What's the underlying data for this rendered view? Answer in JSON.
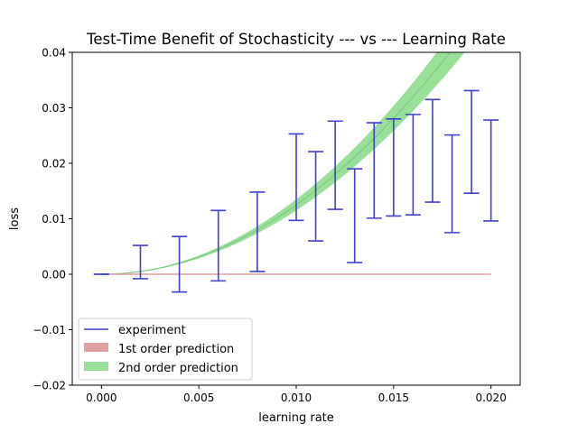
{
  "chart_data": {
    "type": "line",
    "title": "Test-Time Benefit of Stochasticity --- vs --- Learning Rate",
    "xlabel": "learning rate",
    "ylabel": "loss",
    "xlim": [
      -0.0015,
      0.0215
    ],
    "ylim": [
      -0.02,
      0.04
    ],
    "xticks": [
      0.0,
      0.005,
      0.01,
      0.015,
      0.02
    ],
    "xtick_labels": [
      "0.000",
      "0.005",
      "0.010",
      "0.015",
      "0.020"
    ],
    "yticks": [
      -0.02,
      -0.01,
      0.0,
      0.01,
      0.02,
      0.03,
      0.04
    ],
    "ytick_labels": [
      "−0.02",
      "−0.01",
      "0.00",
      "0.01",
      "0.02",
      "0.03",
      "0.04"
    ],
    "grid": false,
    "legend_position": "lower-left",
    "legend": [
      {
        "label": "experiment",
        "kind": "line",
        "color": "#3f3fcf"
      },
      {
        "label": "1st order prediction",
        "kind": "patch",
        "color": "#e0a0a0"
      },
      {
        "label": "2nd order prediction",
        "kind": "patch",
        "color": "#98e098"
      }
    ],
    "experiment": {
      "name": "experiment",
      "color": "#3f3fcf",
      "x": [
        0.0,
        0.002,
        0.004,
        0.006,
        0.008,
        0.01,
        0.011,
        0.012,
        0.013,
        0.014,
        0.015,
        0.016,
        0.017,
        0.018,
        0.019,
        0.02
      ],
      "low": [
        0.0,
        -0.0008,
        -0.0032,
        -0.0012,
        0.0005,
        0.0097,
        0.006,
        0.0117,
        0.0021,
        0.0101,
        0.0105,
        0.0107,
        0.013,
        0.0075,
        0.0146,
        0.0096
      ],
      "high": [
        0.0,
        0.0052,
        0.0068,
        0.0115,
        0.0148,
        0.0253,
        0.0221,
        0.0276,
        0.019,
        0.0273,
        0.028,
        0.0288,
        0.0315,
        0.0251,
        0.0331,
        0.0278
      ]
    },
    "first_order": {
      "name": "1st order prediction",
      "color": "#e0a0a0",
      "x": [
        0.0,
        0.02
      ],
      "y": [
        0.0,
        0.0
      ]
    },
    "second_order": {
      "name": "2nd order prediction",
      "line_color": "#7fc97f",
      "band_color": "#98e098",
      "coef_center": 125,
      "coef_low": 115,
      "coef_high": 135,
      "x_start": 0.0,
      "x_end": 0.0191
    }
  }
}
